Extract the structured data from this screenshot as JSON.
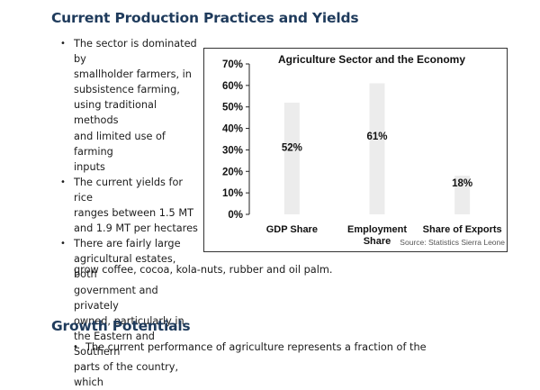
{
  "section1": {
    "heading": "Current Production Practices and Yields",
    "bullets": [
      [
        "The sector is dominated by",
        "smallholder farmers, in",
        "subsistence farming,",
        "using traditional methods",
        "and limited use of farming",
        "inputs"
      ],
      [
        "The current yields for rice",
        "ranges between 1.5 MT",
        "and 1.9 MT per hectares"
      ],
      [
        "There are fairly large",
        "agricultural estates, both",
        "government and privately",
        "owned, particularly in",
        "the Eastern and Southern",
        "parts of the country, which"
      ]
    ],
    "tail_lines": [
      "grow coffee, cocoa, kola-nuts, rubber and oil palm."
    ]
  },
  "section2": {
    "heading": "Growth Potentials",
    "bullets": [
      "The current performance of agriculture represents a fraction of the"
    ]
  },
  "chart_data": {
    "type": "bar",
    "title": "Agriculture Sector and the Economy",
    "categories": [
      [
        "GDP Share"
      ],
      [
        "Employment",
        "Share"
      ],
      [
        "Share of Exports"
      ]
    ],
    "values": [
      52,
      61,
      18
    ],
    "value_labels": [
      "52%",
      "61%",
      "18%"
    ],
    "ylim": [
      0,
      70
    ],
    "yticks": [
      0,
      10,
      20,
      30,
      40,
      50,
      60,
      70
    ],
    "ytick_labels": [
      "0%",
      "10%",
      "20%",
      "30%",
      "40%",
      "50%",
      "60%",
      "70%"
    ],
    "xlabel": "",
    "ylabel": "",
    "grid": false,
    "bar_color": "#ececec",
    "source": "Source: Statistics Sierra Leone"
  }
}
